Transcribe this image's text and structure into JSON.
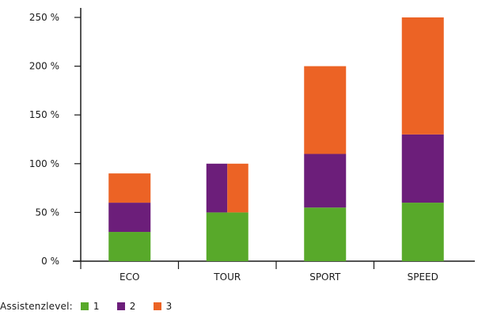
{
  "chart_data": {
    "type": "bar",
    "stacked": true,
    "categories": [
      "ECO",
      "TOUR",
      "SPORT",
      "SPEED"
    ],
    "series": [
      {
        "name": "1",
        "color": "#58a92a",
        "values": [
          30,
          50,
          55,
          60
        ]
      },
      {
        "name": "2",
        "color": "#6c1e7a",
        "values": [
          30,
          50,
          55,
          70
        ]
      },
      {
        "name": "3",
        "color": "#ec6325",
        "values": [
          30,
          50,
          90,
          120
        ]
      }
    ],
    "tick_labels": [
      [
        "0 %",
        0
      ],
      [
        "50 %",
        50
      ],
      [
        "100 %",
        100
      ],
      [
        "150 %",
        150
      ],
      [
        "200 %",
        200
      ],
      [
        "250 %",
        250
      ]
    ],
    "ylim": [
      0,
      250
    ],
    "grid": false,
    "legend_position": "bottom-left",
    "legend_title": "Assistenzlevel:"
  }
}
